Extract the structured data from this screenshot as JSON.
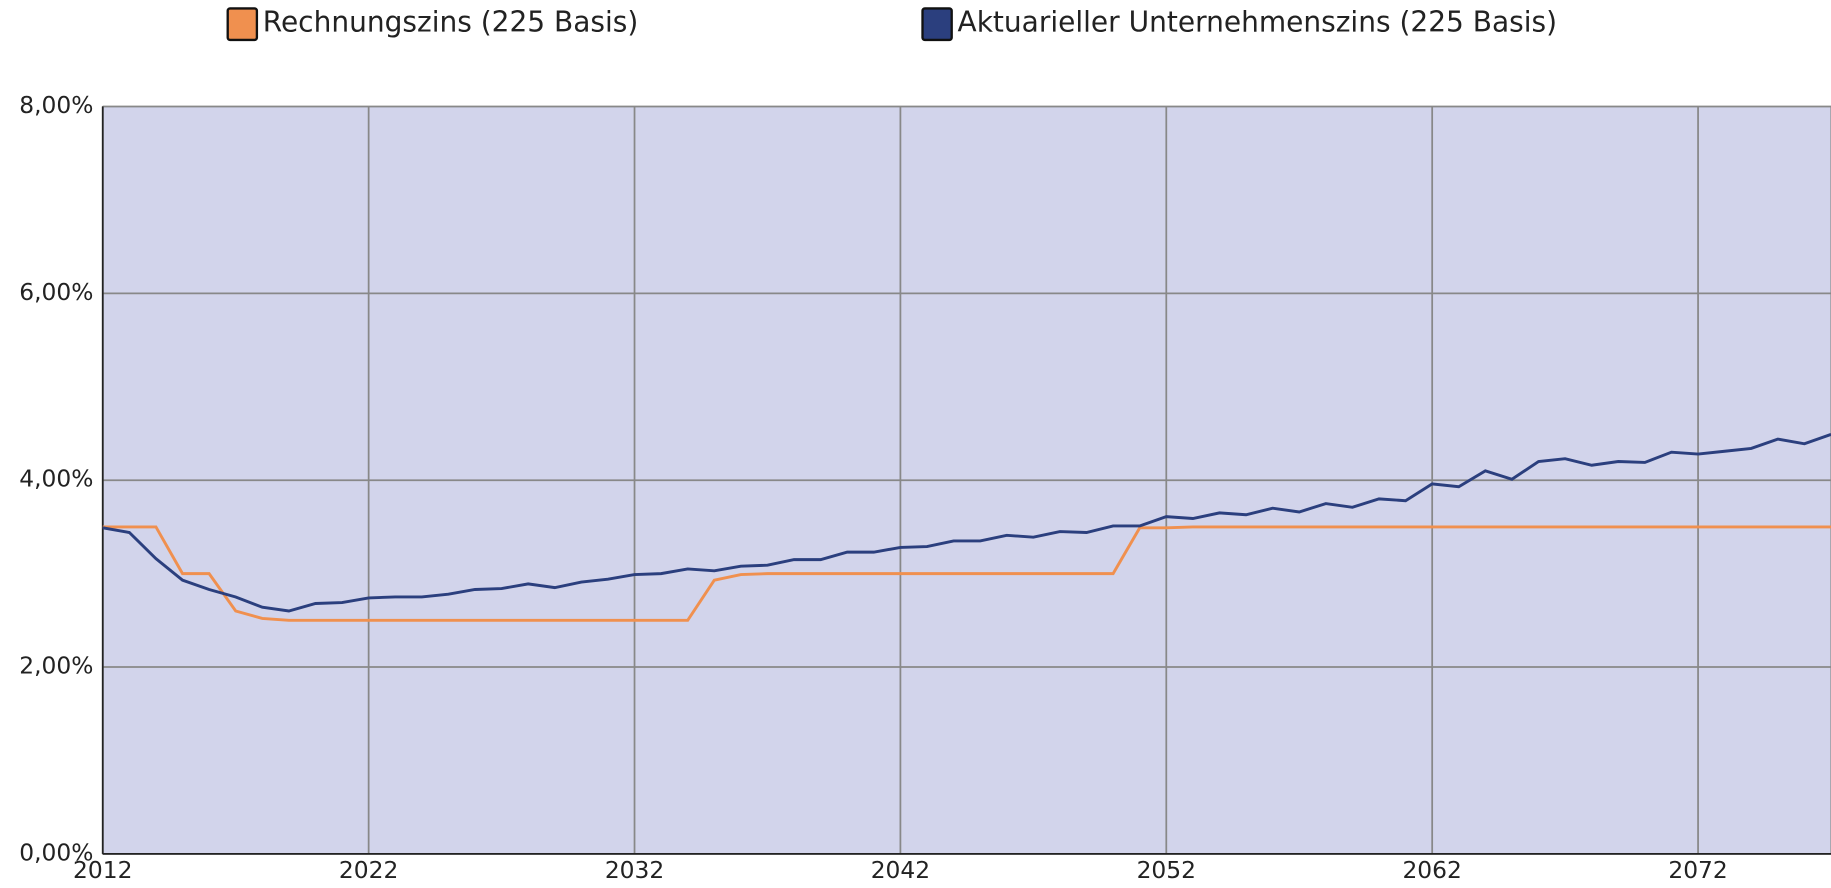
{
  "chart_data": {
    "type": "line",
    "x": [
      2012,
      2013,
      2014,
      2015,
      2016,
      2017,
      2018,
      2019,
      2020,
      2021,
      2022,
      2023,
      2024,
      2025,
      2026,
      2027,
      2028,
      2029,
      2030,
      2031,
      2032,
      2033,
      2034,
      2035,
      2036,
      2037,
      2038,
      2039,
      2040,
      2041,
      2042,
      2043,
      2044,
      2045,
      2046,
      2047,
      2048,
      2049,
      2050,
      2051,
      2052,
      2053,
      2054,
      2055,
      2056,
      2057,
      2058,
      2059,
      2060,
      2061,
      2062,
      2063,
      2064,
      2065,
      2066,
      2067,
      2068,
      2069,
      2070,
      2071,
      2072,
      2073,
      2074,
      2075,
      2076,
      2077
    ],
    "series": [
      {
        "name": "Rechnungszins (225 Basis)",
        "color": "#f0904f",
        "values": [
          3.5,
          3.5,
          3.5,
          3.0,
          3.0,
          2.6,
          2.52,
          2.5,
          2.5,
          2.5,
          2.5,
          2.5,
          2.5,
          2.5,
          2.5,
          2.5,
          2.5,
          2.5,
          2.5,
          2.5,
          2.5,
          2.5,
          2.5,
          2.93,
          2.99,
          3.0,
          3.0,
          3.0,
          3.0,
          3.0,
          3.0,
          3.0,
          3.0,
          3.0,
          3.0,
          3.0,
          3.0,
          3.0,
          3.0,
          3.49,
          3.49,
          3.5,
          3.5,
          3.5,
          3.5,
          3.5,
          3.5,
          3.5,
          3.5,
          3.5,
          3.5,
          3.5,
          3.5,
          3.5,
          3.5,
          3.5,
          3.5,
          3.5,
          3.5,
          3.5,
          3.5,
          3.5,
          3.5,
          3.5,
          3.5,
          3.5
        ]
      },
      {
        "name": "Aktuarieller Unternehmenszins (225 Basis)",
        "color": "#2b3f7e",
        "values": [
          3.49,
          3.44,
          3.16,
          2.93,
          2.83,
          2.75,
          2.64,
          2.6,
          2.68,
          2.69,
          2.74,
          2.75,
          2.75,
          2.78,
          2.83,
          2.84,
          2.89,
          2.85,
          2.91,
          2.94,
          2.99,
          3.0,
          3.05,
          3.03,
          3.08,
          3.09,
          3.15,
          3.15,
          3.23,
          3.23,
          3.28,
          3.29,
          3.35,
          3.35,
          3.41,
          3.39,
          3.45,
          3.44,
          3.51,
          3.51,
          3.61,
          3.59,
          3.65,
          3.63,
          3.7,
          3.66,
          3.75,
          3.71,
          3.8,
          3.78,
          3.96,
          3.93,
          4.1,
          4.01,
          4.2,
          4.23,
          4.16,
          4.2,
          4.19,
          4.3,
          4.28,
          4.31,
          4.34,
          4.44,
          4.39,
          4.49
        ]
      }
    ],
    "xlim": [
      2012,
      2077
    ],
    "xticks": [
      2012,
      2022,
      2032,
      2042,
      2052,
      2062,
      2072
    ],
    "ylim": [
      0,
      8
    ],
    "yticks": [
      {
        "value": 0,
        "label": "0,00%"
      },
      {
        "value": 2,
        "label": "2,00%"
      },
      {
        "value": 4,
        "label": "4,00%"
      },
      {
        "value": 6,
        "label": "6,00%"
      },
      {
        "value": 8,
        "label": "8,00%"
      }
    ],
    "grid": true,
    "legend": "top",
    "background": "#d2d4eb"
  }
}
